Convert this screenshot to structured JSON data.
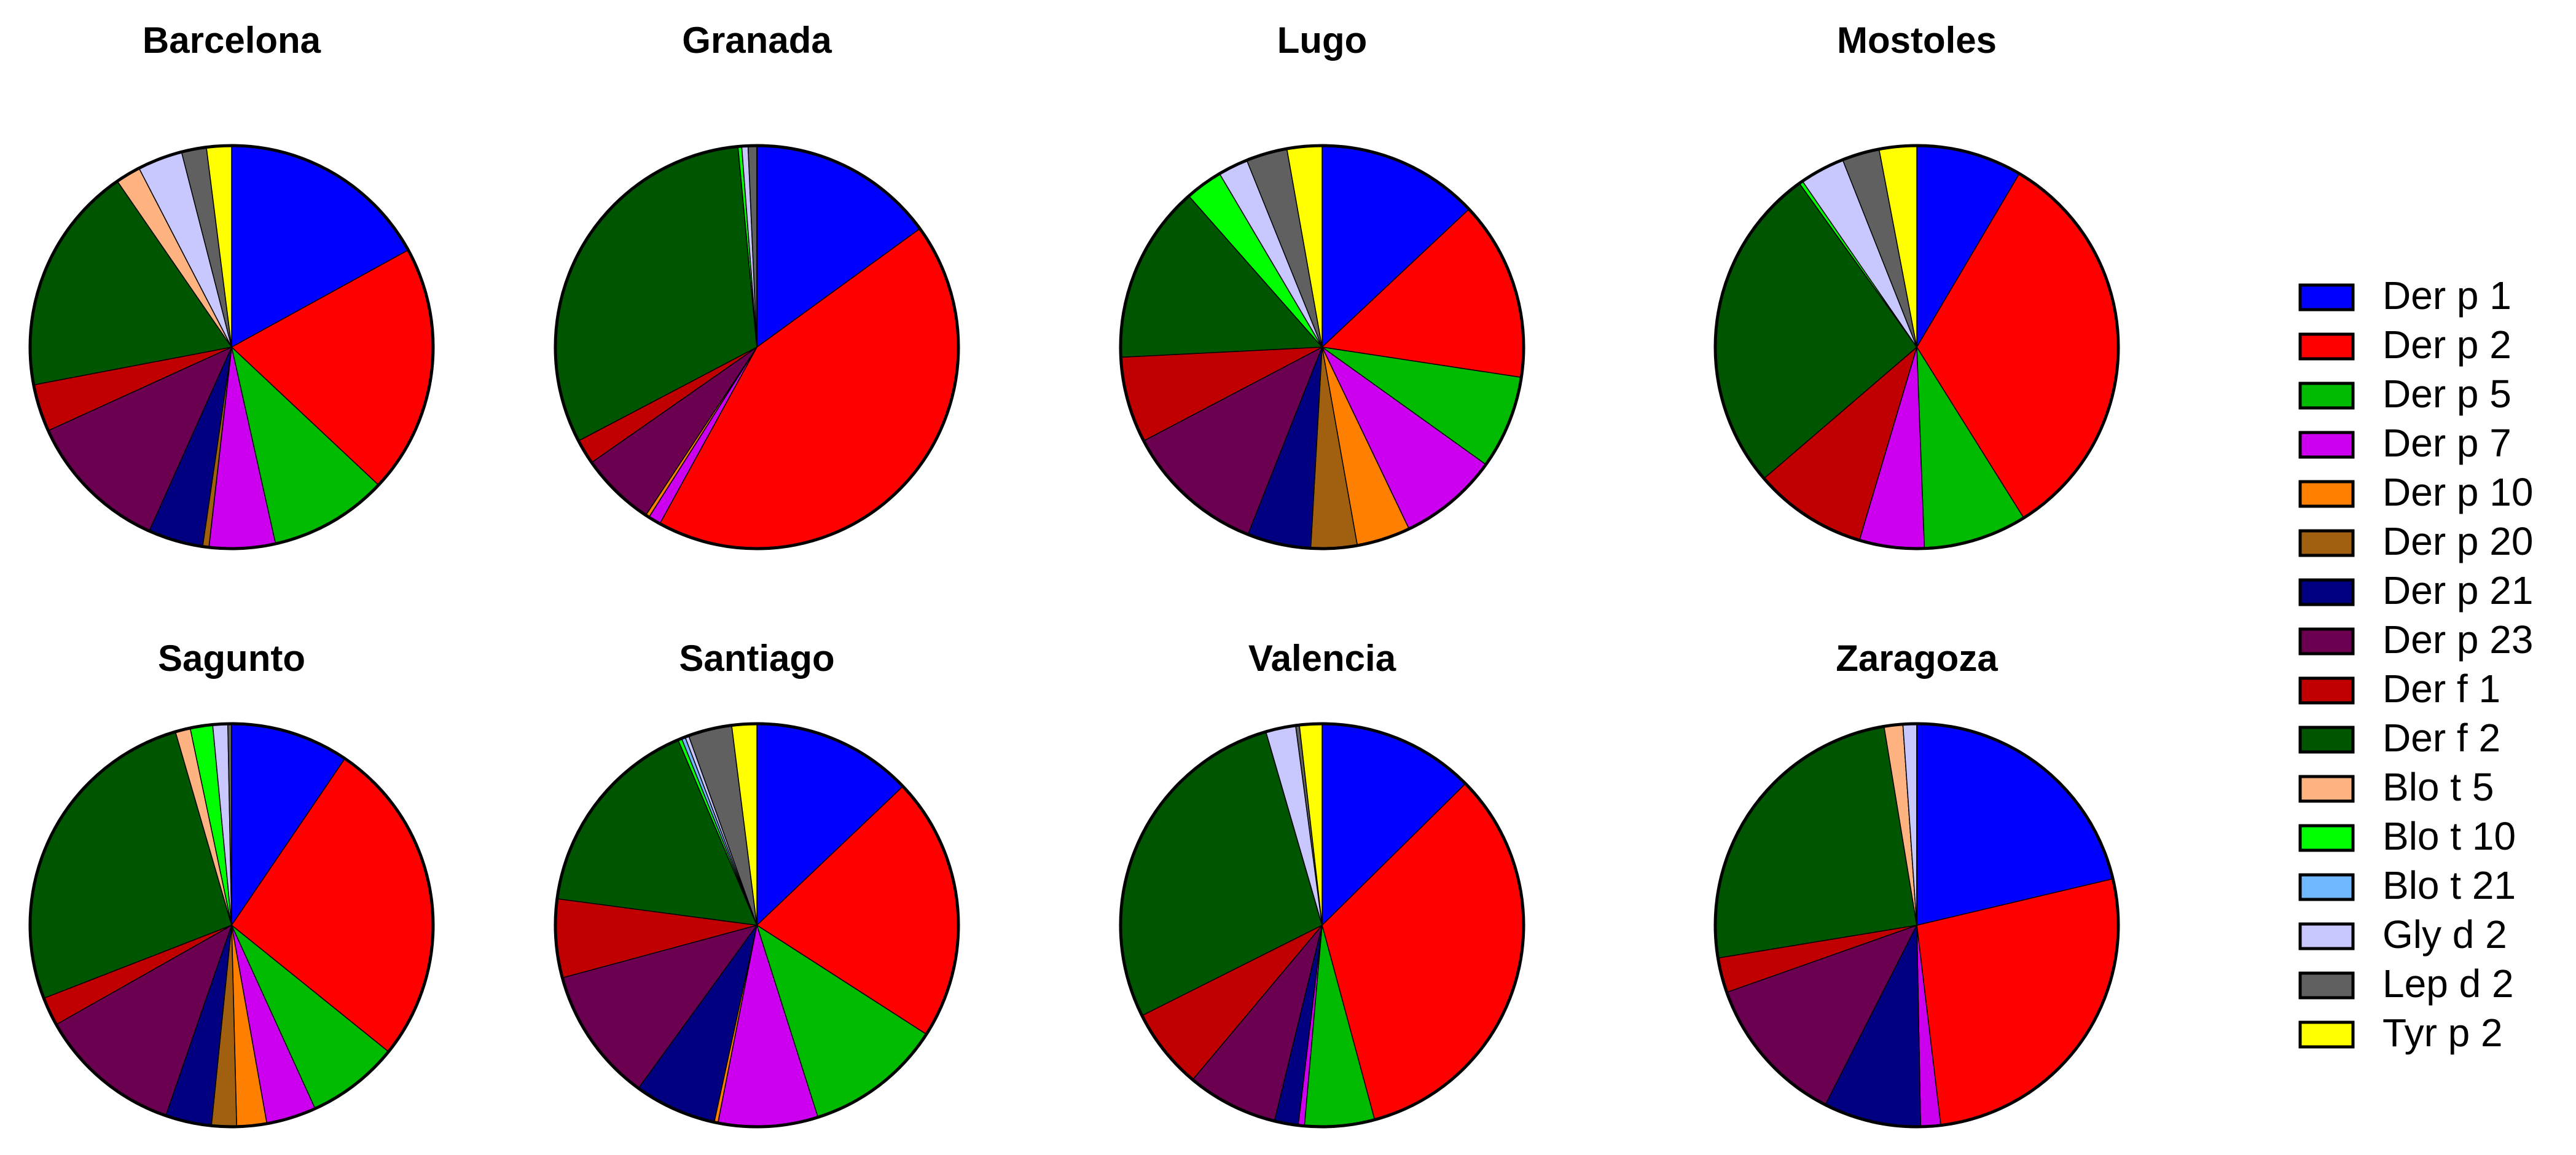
{
  "chart_data": [
    {
      "type": "pie",
      "title": "Barcelona",
      "categories": [
        "Der p 1",
        "Der p 2",
        "Der p 5",
        "Der p 7",
        "Der p 10",
        "Der p 20",
        "Der p 21",
        "Der p 23",
        "Der f 1",
        "Der f 2",
        "Blo t 5",
        "Blo t 10",
        "Blo t 21",
        "Gly d 2",
        "Lep d 2",
        "Tyr p 2"
      ],
      "colors": [
        "#0000ff",
        "#ff0000",
        "#00bb00",
        "#cc00ee",
        "#ff8000",
        "#a0600f",
        "#000080",
        "#6b0050",
        "#c00000",
        "#005500",
        "#ffb380",
        "#00ff00",
        "#70b8ff",
        "#c8c8ff",
        "#606060",
        "#ffff00"
      ],
      "values": [
        17,
        20,
        9.5,
        5.3,
        0,
        0.5,
        4.4,
        11.5,
        3.8,
        18.4,
        2,
        0,
        0,
        3.6,
        2,
        2
      ]
    },
    {
      "type": "pie",
      "title": "Granada",
      "categories": [
        "Der p 1",
        "Der p 2",
        "Der p 5",
        "Der p 7",
        "Der p 10",
        "Der p 20",
        "Der p 21",
        "Der p 23",
        "Der f 1",
        "Der f 2",
        "Blo t 5",
        "Blo t 10",
        "Blo t 21",
        "Gly d 2",
        "Lep d 2",
        "Tyr p 2"
      ],
      "colors": [
        "#0000ff",
        "#ff0000",
        "#00bb00",
        "#cc00ee",
        "#ff8000",
        "#a0600f",
        "#000080",
        "#6b0050",
        "#c00000",
        "#005500",
        "#ffb380",
        "#00ff00",
        "#70b8ff",
        "#c8c8ff",
        "#606060",
        "#ffff00"
      ],
      "values": [
        15,
        43,
        0,
        1,
        0.3,
        0,
        0,
        6,
        2,
        31.2,
        0,
        0.3,
        0,
        0.5,
        0.7,
        0
      ]
    },
    {
      "type": "pie",
      "title": "Lugo",
      "categories": [
        "Der p 1",
        "Der p 2",
        "Der p 5",
        "Der p 7",
        "Der p 10",
        "Der p 20",
        "Der p 21",
        "Der p 23",
        "Der f 1",
        "Der f 2",
        "Blo t 5",
        "Blo t 10",
        "Blo t 21",
        "Gly d 2",
        "Lep d 2",
        "Tyr p 2"
      ],
      "colors": [
        "#0000ff",
        "#ff0000",
        "#00bb00",
        "#cc00ee",
        "#ff8000",
        "#a0600f",
        "#000080",
        "#6b0050",
        "#c00000",
        "#005500",
        "#ffb380",
        "#00ff00",
        "#70b8ff",
        "#c8c8ff",
        "#606060",
        "#ffff00"
      ],
      "values": [
        13,
        14.4,
        7.5,
        8,
        4.3,
        3.7,
        5.1,
        11.3,
        6.9,
        14.3,
        0,
        3,
        0,
        2.4,
        3.3,
        2.8
      ]
    },
    {
      "type": "pie",
      "title": "Mostoles",
      "categories": [
        "Der p 1",
        "Der p 2",
        "Der p 5",
        "Der p 7",
        "Der p 10",
        "Der p 20",
        "Der p 21",
        "Der p 23",
        "Der f 1",
        "Der f 2",
        "Blo t 5",
        "Blo t 10",
        "Blo t 21",
        "Gly d 2",
        "Lep d 2",
        "Tyr p 2"
      ],
      "colors": [
        "#0000ff",
        "#ff0000",
        "#00bb00",
        "#cc00ee",
        "#ff8000",
        "#a0600f",
        "#000080",
        "#6b0050",
        "#c00000",
        "#005500",
        "#ffb380",
        "#00ff00",
        "#70b8ff",
        "#c8c8ff",
        "#606060",
        "#ffff00"
      ],
      "values": [
        8.5,
        32.6,
        8.3,
        5.2,
        0,
        0,
        0,
        0,
        9.1,
        26.4,
        0,
        0.3,
        0,
        3.6,
        3,
        3
      ]
    },
    {
      "type": "pie",
      "title": "Sagunto",
      "categories": [
        "Der p 1",
        "Der p 2",
        "Der p 5",
        "Der p 7",
        "Der p 10",
        "Der p 20",
        "Der p 21",
        "Der p 23",
        "Der f 1",
        "Der f 2",
        "Blo t 5",
        "Blo t 10",
        "Blo t 21",
        "Gly d 2",
        "Lep d 2",
        "Tyr p 2"
      ],
      "colors": [
        "#0000ff",
        "#ff0000",
        "#00bb00",
        "#cc00ee",
        "#ff8000",
        "#a0600f",
        "#000080",
        "#6b0050",
        "#c00000",
        "#005500",
        "#ffb380",
        "#00ff00",
        "#70b8ff",
        "#c8c8ff",
        "#606060",
        "#ffff00"
      ],
      "values": [
        9.5,
        26.3,
        7.4,
        4,
        2.4,
        2,
        3.7,
        11.5,
        2.3,
        26.4,
        1.2,
        1.8,
        0,
        1.2,
        0.3,
        0
      ]
    },
    {
      "type": "pie",
      "title": "Santiago",
      "categories": [
        "Der p 1",
        "Der p 2",
        "Der p 5",
        "Der p 7",
        "Der p 10",
        "Der p 20",
        "Der p 21",
        "Der p 23",
        "Der f 1",
        "Der f 2",
        "Blo t 5",
        "Blo t 10",
        "Blo t 21",
        "Gly d 2",
        "Lep d 2",
        "Tyr p 2"
      ],
      "colors": [
        "#0000ff",
        "#ff0000",
        "#00bb00",
        "#cc00ee",
        "#ff8000",
        "#a0600f",
        "#000080",
        "#6b0050",
        "#c00000",
        "#005500",
        "#ffb380",
        "#00ff00",
        "#70b8ff",
        "#c8c8ff",
        "#606060",
        "#ffff00"
      ],
      "values": [
        12.9,
        21.2,
        11,
        8,
        0.3,
        0,
        6.6,
        10.8,
        6.3,
        16.5,
        0,
        0.3,
        0.3,
        0.3,
        3.5,
        2
      ]
    },
    {
      "type": "pie",
      "title": "Valencia",
      "categories": [
        "Der p 1",
        "Der p 2",
        "Der p 5",
        "Der p 7",
        "Der p 10",
        "Der p 20",
        "Der p 21",
        "Der p 23",
        "Der f 1",
        "Der f 2",
        "Blo t 5",
        "Blo t 10",
        "Blo t 21",
        "Gly d 2",
        "Lep d 2",
        "Tyr p 2"
      ],
      "colors": [
        "#0000ff",
        "#ff0000",
        "#00bb00",
        "#cc00ee",
        "#ff8000",
        "#a0600f",
        "#000080",
        "#6b0050",
        "#c00000",
        "#005500",
        "#ffb380",
        "#00ff00",
        "#70b8ff",
        "#c8c8ff",
        "#606060",
        "#ffff00"
      ],
      "values": [
        12.6,
        33.2,
        5.6,
        0.5,
        0,
        0,
        1.9,
        7.3,
        6.5,
        27.9,
        0,
        0,
        0,
        2.4,
        0.3,
        1.8
      ]
    },
    {
      "type": "pie",
      "title": "Zaragoza",
      "categories": [
        "Der p 1",
        "Der p 2",
        "Der p 5",
        "Der p 7",
        "Der p 10",
        "Der p 20",
        "Der p 21",
        "Der p 23",
        "Der f 1",
        "Der f 2",
        "Blo t 5",
        "Blo t 10",
        "Blo t 21",
        "Gly d 2",
        "Lep d 2",
        "Tyr p 2"
      ],
      "colors": [
        "#0000ff",
        "#ff0000",
        "#00bb00",
        "#cc00ee",
        "#ff8000",
        "#a0600f",
        "#000080",
        "#6b0050",
        "#c00000",
        "#005500",
        "#ffb380",
        "#00ff00",
        "#70b8ff",
        "#c8c8ff",
        "#606060",
        "#ffff00"
      ],
      "values": [
        21.3,
        26.8,
        0,
        1.6,
        0,
        0,
        7.8,
        12.1,
        2.8,
        25,
        1.5,
        0,
        0,
        1.1,
        0,
        0
      ]
    }
  ]
}
